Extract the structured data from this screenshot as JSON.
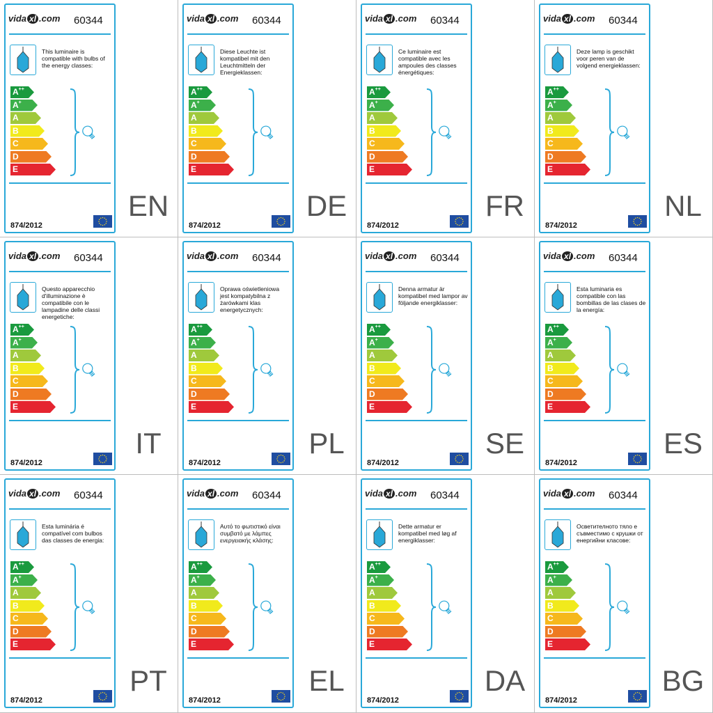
{
  "brand": {
    "name": "vidaXL.com",
    "prefix": "vida",
    "mark": "xl",
    "suffix": ".com"
  },
  "product_code": "60344",
  "regulation": "874/2012",
  "eu_flag_icon": "eu-flag-icon",
  "lamp_icon": "pendant-lamp-icon",
  "bulb_icon": "bulb-icon",
  "energy_classes": [
    {
      "letter": "A",
      "suffix": "++",
      "color": "#1a9a3e"
    },
    {
      "letter": "A",
      "suffix": "+",
      "color": "#3cb04a"
    },
    {
      "letter": "A",
      "suffix": "",
      "color": "#9fc93c"
    },
    {
      "letter": "B",
      "suffix": "",
      "color": "#f1ea1c"
    },
    {
      "letter": "C",
      "suffix": "",
      "color": "#f6b81c"
    },
    {
      "letter": "D",
      "suffix": "",
      "color": "#ee7a22"
    },
    {
      "letter": "E",
      "suffix": "",
      "color": "#e52530"
    }
  ],
  "colors": {
    "accent": "#29a8d8",
    "lamp_fill": "#29a8d8",
    "flag_blue": "#1f4da1",
    "flag_star": "#f6d21c"
  },
  "labels": [
    {
      "lang": "EN",
      "text": "This luminaire is compatible with bulbs of the energy classes:"
    },
    {
      "lang": "DE",
      "text": "Diese Leuchte ist kompatibel mit den Leuchtmitteln der Energieklassen:"
    },
    {
      "lang": "FR",
      "text": "Ce luminaire est compatible avec les ampoules des classes énergétiques:"
    },
    {
      "lang": "NL",
      "text": "Deze lamp is geschikt voor peren van de volgend energieklassen:"
    },
    {
      "lang": "IT",
      "text": "Questo apparecchio d'illuminazione è compatibile con le lampadine delle classi energetiche:"
    },
    {
      "lang": "PL",
      "text": "Oprawa oświetleniowa jest kompatybilna z żarówkami klas energetycznych:"
    },
    {
      "lang": "SE",
      "text": "Denna armatur är kompatibel med lampor av följande energiklasser:"
    },
    {
      "lang": "ES",
      "text": "Esta luminaria es compatible con las bombillas de las clases de la energía:"
    },
    {
      "lang": "PT",
      "text": "Esta luminária é compatível com bulbos das classes de energia:"
    },
    {
      "lang": "EL",
      "text": "Αυτό το φωτιστικό είναι συμβατό με λάμπες ενεργειακής κλάσης:"
    },
    {
      "lang": "DA",
      "text": "Dette armatur er kompatibel med løg af energiklasser:"
    },
    {
      "lang": "BG",
      "text": "Осветителното тяло е съвместимо с крушки от енергийни класове:"
    }
  ]
}
